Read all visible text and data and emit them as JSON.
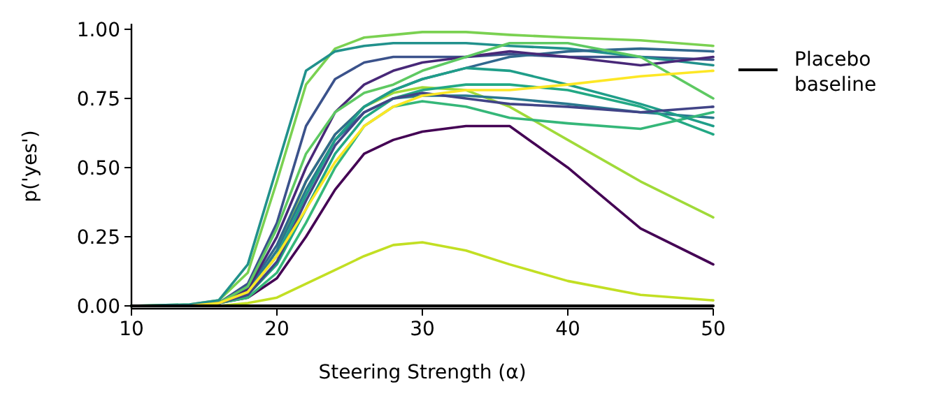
{
  "chart_data": {
    "type": "line",
    "xlabel": "Steering Strength (α)",
    "ylabel": "p('yes')",
    "x": [
      10,
      14,
      16,
      18,
      20,
      22,
      24,
      26,
      28,
      30,
      33,
      36,
      40,
      45,
      50
    ],
    "xlim": [
      10,
      50
    ],
    "xticks": [
      10,
      20,
      30,
      40,
      50
    ],
    "ylim": [
      -0.01,
      1.02
    ],
    "yticks": [
      {
        "value": 0,
        "label": "0.00"
      },
      {
        "value": 0.25,
        "label": "0.25"
      },
      {
        "value": 0.5,
        "label": "0.50"
      },
      {
        "value": 0.75,
        "label": "0.75"
      },
      {
        "value": 1,
        "label": "1.00"
      }
    ],
    "grid": false,
    "legend": "right",
    "marker": "none",
    "line_style": "solid",
    "series": [
      {
        "color": "#440154",
        "values": [
          0,
          0,
          0.01,
          0.03,
          0.1,
          0.25,
          0.42,
          0.55,
          0.6,
          0.63,
          0.65,
          0.65,
          0.5,
          0.28,
          0.15
        ]
      },
      {
        "color": "#c2df23",
        "values": [
          0,
          0,
          0,
          0.01,
          0.03,
          0.08,
          0.13,
          0.18,
          0.22,
          0.23,
          0.2,
          0.15,
          0.09,
          0.04,
          0.02
        ]
      },
      {
        "color": "#a0da39",
        "values": [
          0,
          0,
          0.01,
          0.05,
          0.2,
          0.45,
          0.62,
          0.72,
          0.77,
          0.79,
          0.78,
          0.72,
          0.6,
          0.45,
          0.32
        ]
      },
      {
        "color": "#7ad151",
        "values": [
          0,
          0.005,
          0.02,
          0.12,
          0.45,
          0.8,
          0.93,
          0.97,
          0.98,
          0.99,
          0.99,
          0.98,
          0.97,
          0.96,
          0.94
        ]
      },
      {
        "color": "#3b528b",
        "values": [
          0,
          0,
          0.01,
          0.08,
          0.3,
          0.65,
          0.82,
          0.88,
          0.9,
          0.9,
          0.9,
          0.91,
          0.9,
          0.9,
          0.89
        ]
      },
      {
        "color": "#21918c",
        "values": [
          0,
          0.005,
          0.02,
          0.15,
          0.5,
          0.85,
          0.92,
          0.94,
          0.95,
          0.95,
          0.95,
          0.94,
          0.93,
          0.9,
          0.87
        ]
      },
      {
        "color": "#31688e",
        "values": [
          0,
          0,
          0.01,
          0.06,
          0.22,
          0.45,
          0.62,
          0.72,
          0.78,
          0.82,
          0.86,
          0.9,
          0.92,
          0.93,
          0.92
        ]
      },
      {
        "color": "#2a788e",
        "values": [
          0,
          0,
          0.01,
          0.05,
          0.2,
          0.42,
          0.6,
          0.7,
          0.75,
          0.76,
          0.76,
          0.75,
          0.73,
          0.7,
          0.68
        ]
      },
      {
        "color": "#22a884",
        "values": [
          0,
          0,
          0.01,
          0.04,
          0.15,
          0.35,
          0.55,
          0.68,
          0.75,
          0.78,
          0.8,
          0.8,
          0.78,
          0.72,
          0.62
        ]
      },
      {
        "color": "#35b779",
        "values": [
          0,
          0,
          0.01,
          0.03,
          0.12,
          0.3,
          0.5,
          0.65,
          0.72,
          0.74,
          0.72,
          0.68,
          0.66,
          0.64,
          0.7
        ]
      },
      {
        "color": "#482878",
        "values": [
          0,
          0,
          0.01,
          0.06,
          0.25,
          0.5,
          0.7,
          0.8,
          0.85,
          0.88,
          0.9,
          0.92,
          0.9,
          0.87,
          0.9
        ]
      },
      {
        "color": "#1f9e89",
        "values": [
          0,
          0,
          0.01,
          0.05,
          0.18,
          0.4,
          0.6,
          0.72,
          0.78,
          0.82,
          0.86,
          0.85,
          0.8,
          0.73,
          0.65
        ]
      },
      {
        "color": "#5ec962",
        "values": [
          0,
          0,
          0.01,
          0.07,
          0.28,
          0.55,
          0.7,
          0.77,
          0.8,
          0.85,
          0.9,
          0.95,
          0.95,
          0.9,
          0.75
        ]
      },
      {
        "color": "#414487",
        "values": [
          0,
          0,
          0.01,
          0.04,
          0.16,
          0.38,
          0.58,
          0.7,
          0.75,
          0.77,
          0.75,
          0.73,
          0.72,
          0.7,
          0.72
        ]
      },
      {
        "color": "#fde725",
        "values": [
          0,
          0,
          0.01,
          0.05,
          0.18,
          0.35,
          0.52,
          0.65,
          0.72,
          0.76,
          0.78,
          0.78,
          0.8,
          0.83,
          0.85
        ]
      },
      {
        "name": "Placebo baseline",
        "color": "#000000",
        "values": [
          0,
          0,
          0,
          0,
          0,
          0,
          0,
          0,
          0,
          0,
          0,
          0,
          0,
          0,
          0
        ]
      }
    ]
  }
}
